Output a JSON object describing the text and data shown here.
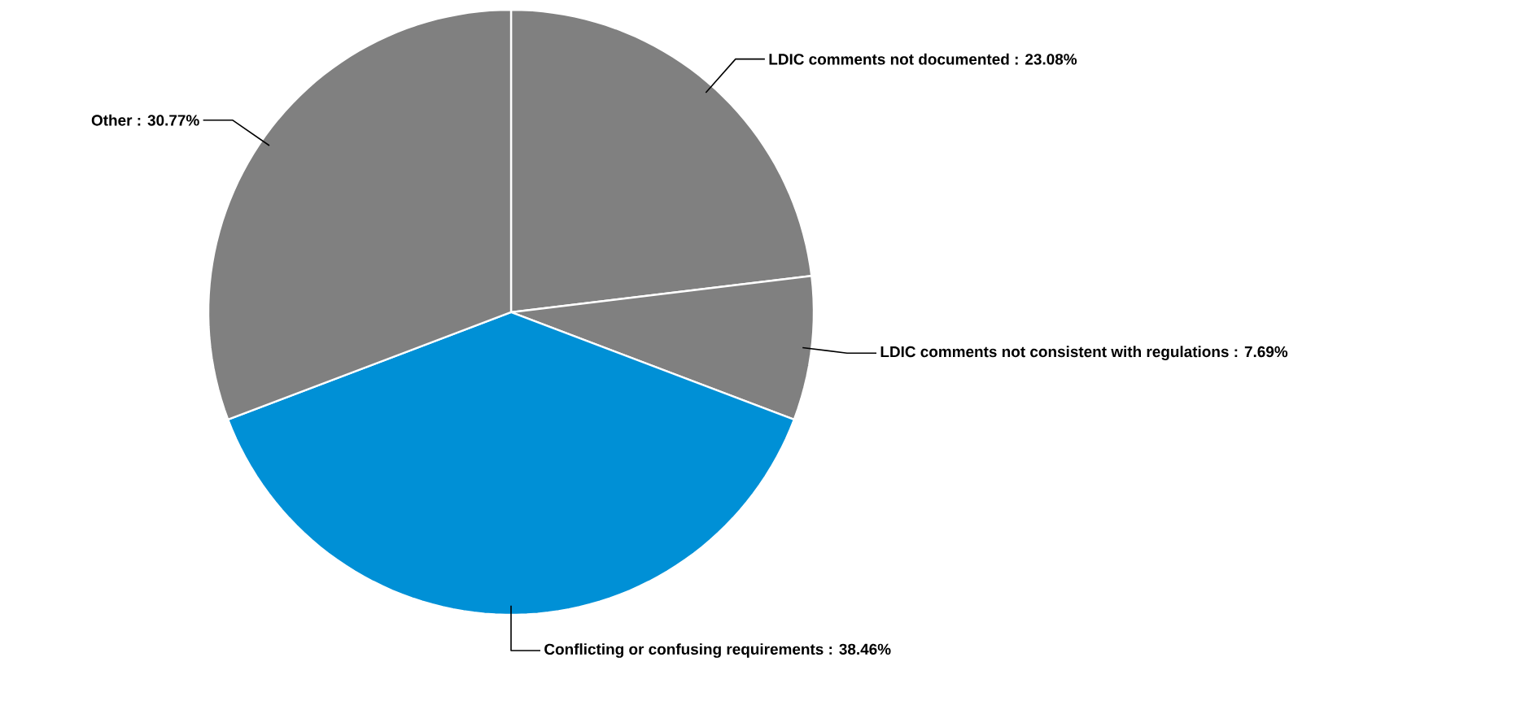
{
  "chart_data": {
    "type": "pie",
    "categories": [
      "LDIC comments not documented",
      "LDIC comments not consistent with regulations",
      "Conflicting or confusing requirements",
      "Other"
    ],
    "values": [
      23.08,
      7.69,
      38.46,
      30.77
    ],
    "value_labels": [
      ": 23.08%",
      ": 7.69%",
      ": 38.46%",
      ": 30.77%"
    ],
    "colors": [
      "#808080",
      "#808080",
      "#0090d6",
      "#808080"
    ]
  }
}
